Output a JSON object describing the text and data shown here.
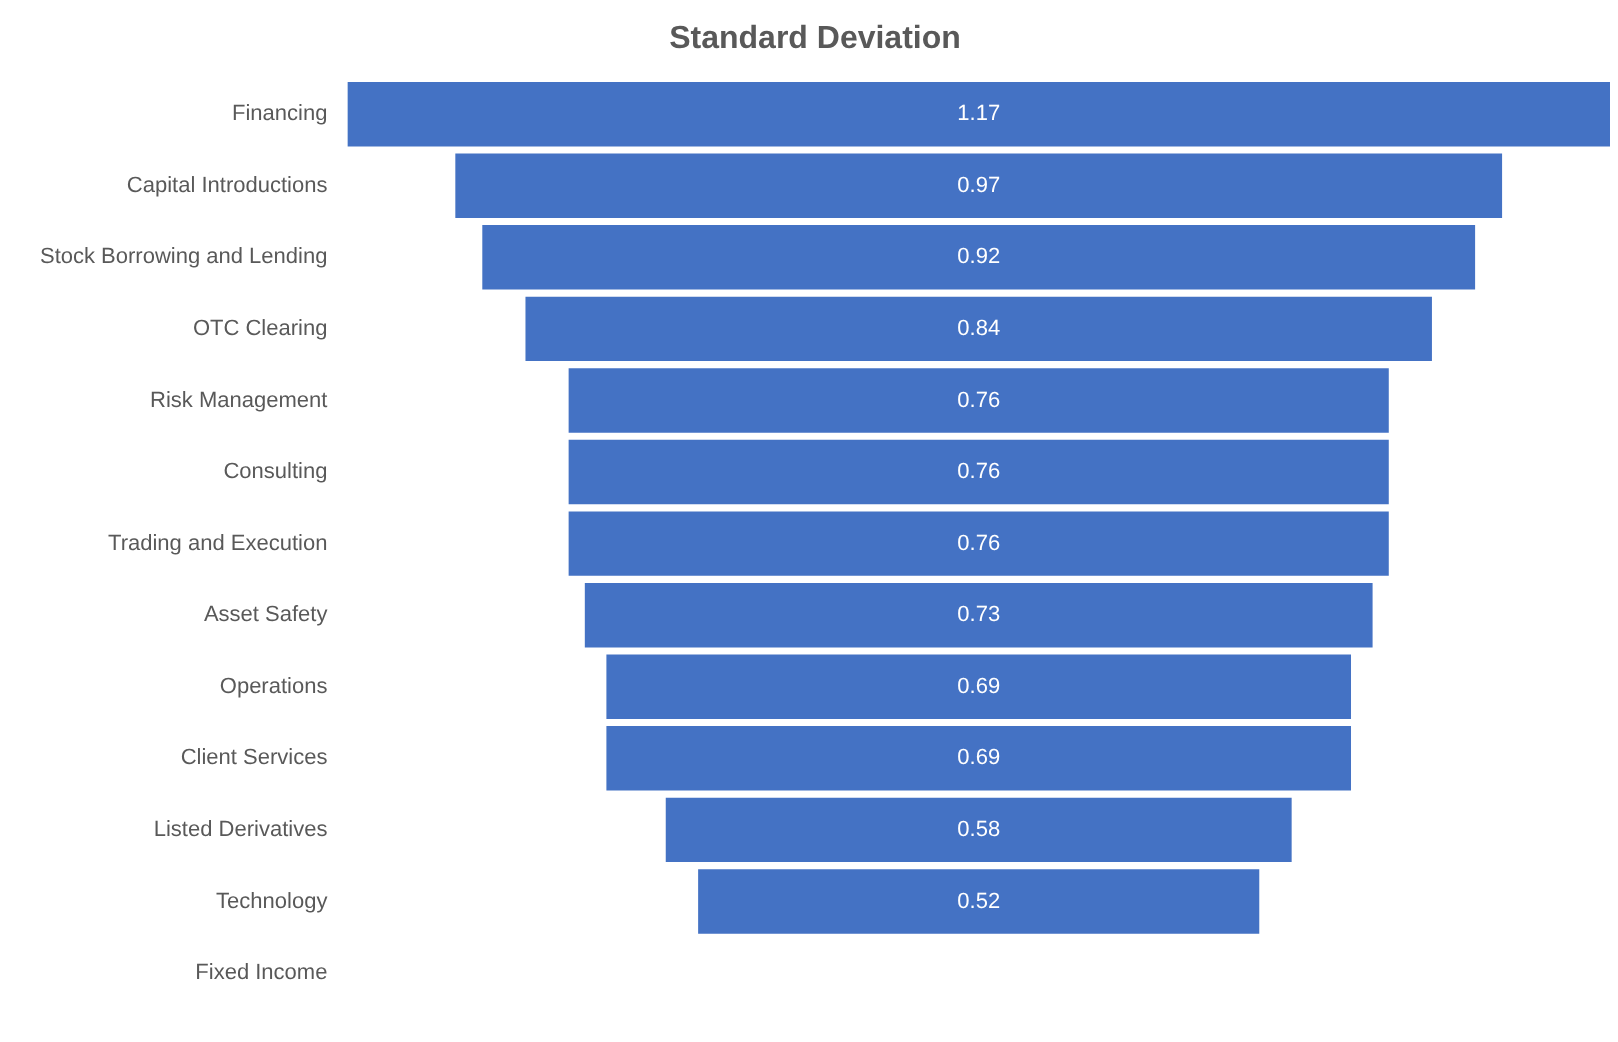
{
  "chart_data": {
    "type": "other",
    "title": "Standard Deviation",
    "categories": [
      "Financing",
      "Capital Introductions",
      "Stock Borrowing and Lending",
      "OTC Clearing",
      "Risk Management",
      "Consulting",
      "Trading and Execution",
      "Asset Safety",
      "Operations",
      "Client Services",
      "Listed Derivatives",
      "Technology",
      "Fixed Income"
    ],
    "values": [
      1.17,
      0.97,
      0.92,
      0.84,
      0.76,
      0.76,
      0.76,
      0.73,
      0.69,
      0.69,
      0.58,
      0.52,
      null
    ],
    "color": "#4472c4",
    "data_labels": true
  }
}
